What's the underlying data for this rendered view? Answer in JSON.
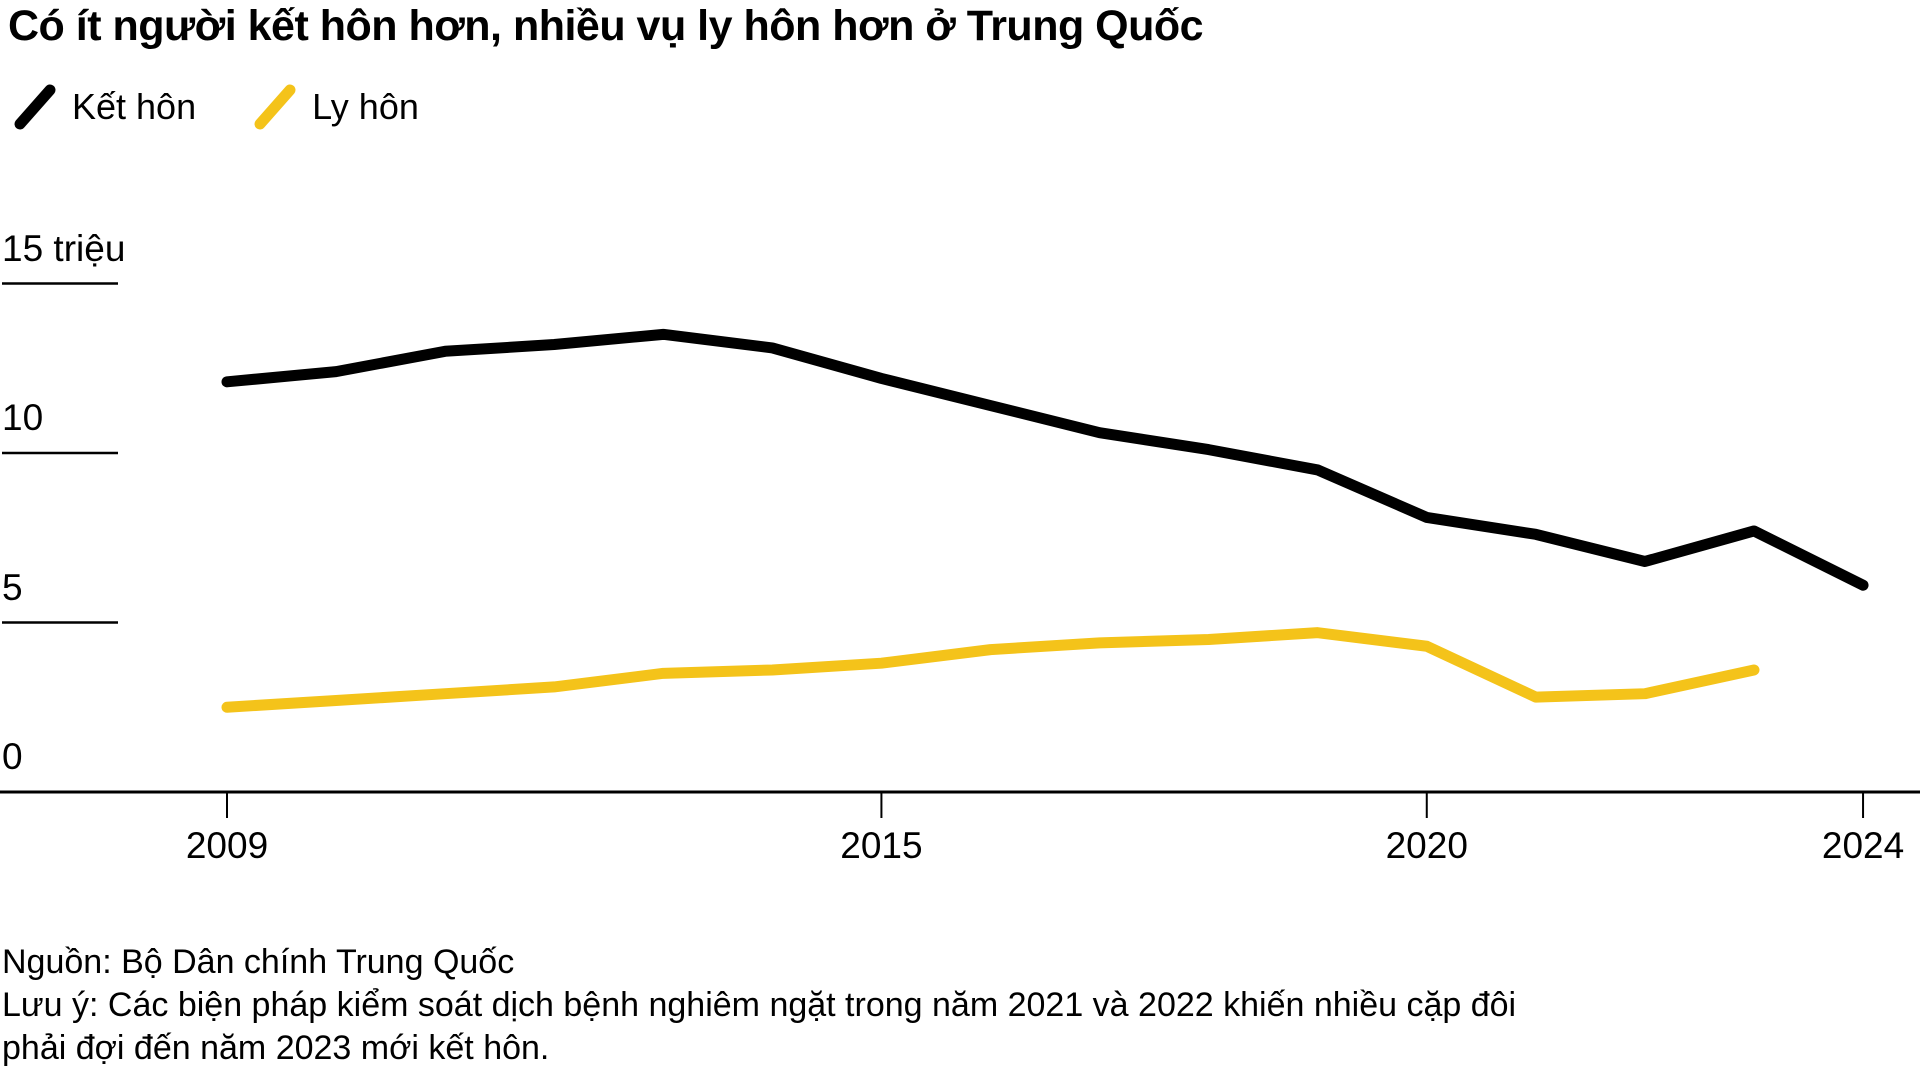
{
  "title": "Có ít người kết hôn hơn, nhiều vụ ly hôn hơn ở Trung Quốc",
  "footer": {
    "source": "Nguồn: Bộ Dân chính Trung Quốc",
    "note": "Lưu ý: Các biện pháp kiểm soát dịch bệnh nghiêm ngặt trong năm 2021 và 2022 khiến nhiều cặp đôi phải đợi đến năm 2023 mới kết hôn."
  },
  "colors": {
    "marriage_line": "#000000",
    "divorce_line": "#F4C31A",
    "axis": "#000000"
  },
  "chart_data": {
    "type": "line",
    "title": "Có ít người kết hôn hơn, nhiều vụ ly hôn hơn ở Trung Quốc",
    "unit_label": "triệu",
    "x": [
      2009,
      2010,
      2011,
      2012,
      2013,
      2014,
      2015,
      2016,
      2017,
      2018,
      2019,
      2020,
      2021,
      2022,
      2023,
      2024
    ],
    "series": [
      {
        "name": "Kết hôn",
        "color": "#000000",
        "values": [
          12.1,
          12.4,
          13.0,
          13.2,
          13.5,
          13.1,
          12.2,
          11.4,
          10.6,
          10.1,
          9.5,
          8.1,
          7.6,
          6.8,
          7.7,
          6.1
        ]
      },
      {
        "name": "Ly hôn",
        "color": "#F4C31A",
        "values": [
          2.5,
          2.7,
          2.9,
          3.1,
          3.5,
          3.6,
          3.8,
          4.2,
          4.4,
          4.5,
          4.7,
          4.3,
          2.8,
          2.9,
          3.6,
          null
        ]
      }
    ],
    "y_ticks": [
      {
        "label": "15 triệu",
        "value": 15,
        "underline": true
      },
      {
        "label": "10",
        "value": 10,
        "underline": true
      },
      {
        "label": "5",
        "value": 5,
        "underline": true
      },
      {
        "label": "0",
        "value": 0,
        "underline": false
      }
    ],
    "x_ticks": [
      2009,
      2015,
      2020,
      2024
    ],
    "xlim": [
      2009,
      2024
    ],
    "ylim": [
      0,
      15
    ],
    "grid": false,
    "legend_position": "top-left"
  }
}
